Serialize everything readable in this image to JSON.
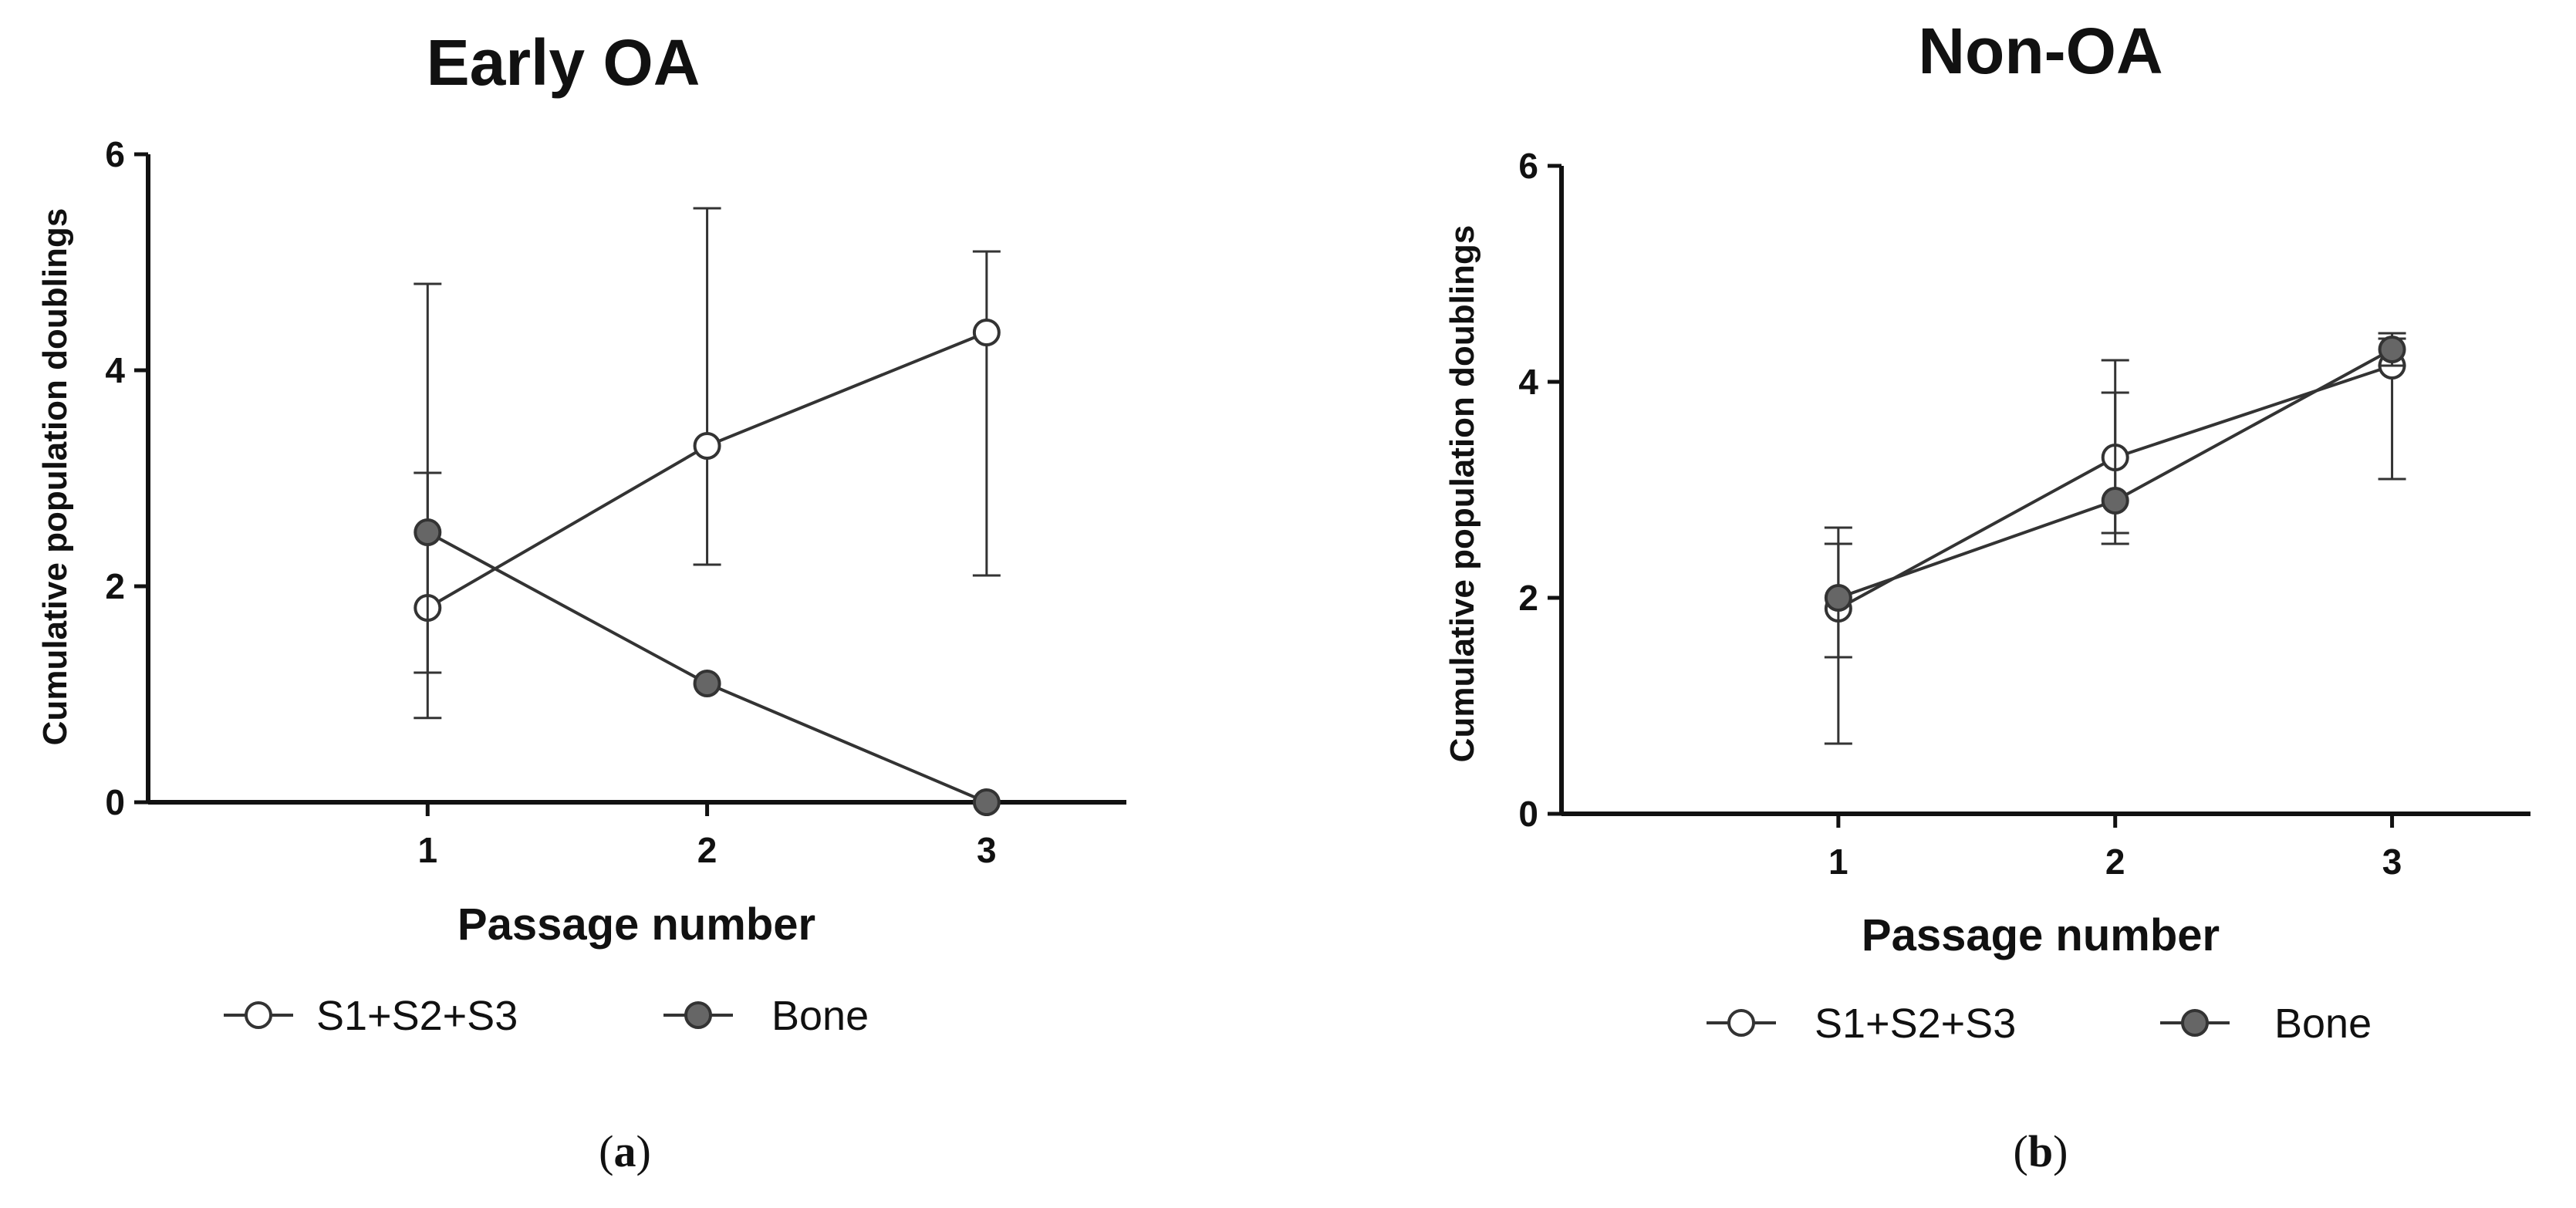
{
  "chart_data": [
    {
      "type": "line",
      "title": "Early OA",
      "xlabel": "Passage number",
      "ylabel": "Cumulative population doublings",
      "x": [
        1,
        2,
        3
      ],
      "xticks": [
        "1",
        "2",
        "3"
      ],
      "yticks": [
        "0",
        "2",
        "4",
        "6"
      ],
      "xlim": [
        0,
        3.5
      ],
      "ylim": [
        0,
        6
      ],
      "series": [
        {
          "name": "S1+S2+S3",
          "marker": "open",
          "values": [
            1.8,
            3.3,
            4.35
          ],
          "err_low": [
            0.78,
            2.2,
            2.1
          ],
          "err_high": [
            4.8,
            5.5,
            5.1
          ]
        },
        {
          "name": "Bone",
          "marker": "filled",
          "values": [
            2.5,
            1.1,
            0.0
          ],
          "err_low": [
            1.2,
            1.1,
            0.0
          ],
          "err_high": [
            3.05,
            1.1,
            0.0
          ]
        }
      ],
      "caption": "a",
      "colors": {
        "line": "#333333",
        "open_fill": "#ffffff",
        "filled_fill": "#666666"
      }
    },
    {
      "type": "line",
      "title": "Non-OA",
      "xlabel": "Passage number",
      "ylabel": "Cumulative population doublings",
      "x": [
        1,
        2,
        3
      ],
      "xticks": [
        "1",
        "2",
        "3"
      ],
      "yticks": [
        "0",
        "2",
        "4",
        "6"
      ],
      "xlim": [
        0,
        3.5
      ],
      "ylim": [
        0,
        6
      ],
      "series": [
        {
          "name": "S1+S2+S3",
          "marker": "open",
          "values": [
            1.9,
            3.3,
            4.15
          ],
          "err_low": [
            0.65,
            2.6,
            3.1
          ],
          "err_high": [
            2.65,
            4.2,
            4.4
          ]
        },
        {
          "name": "Bone",
          "marker": "filled",
          "values": [
            2.0,
            2.9,
            4.3
          ],
          "err_low": [
            1.45,
            2.5,
            4.15
          ],
          "err_high": [
            2.5,
            3.9,
            4.45
          ]
        }
      ],
      "caption": "b",
      "colors": {
        "line": "#333333",
        "open_fill": "#ffffff",
        "filled_fill": "#666666"
      }
    }
  ]
}
